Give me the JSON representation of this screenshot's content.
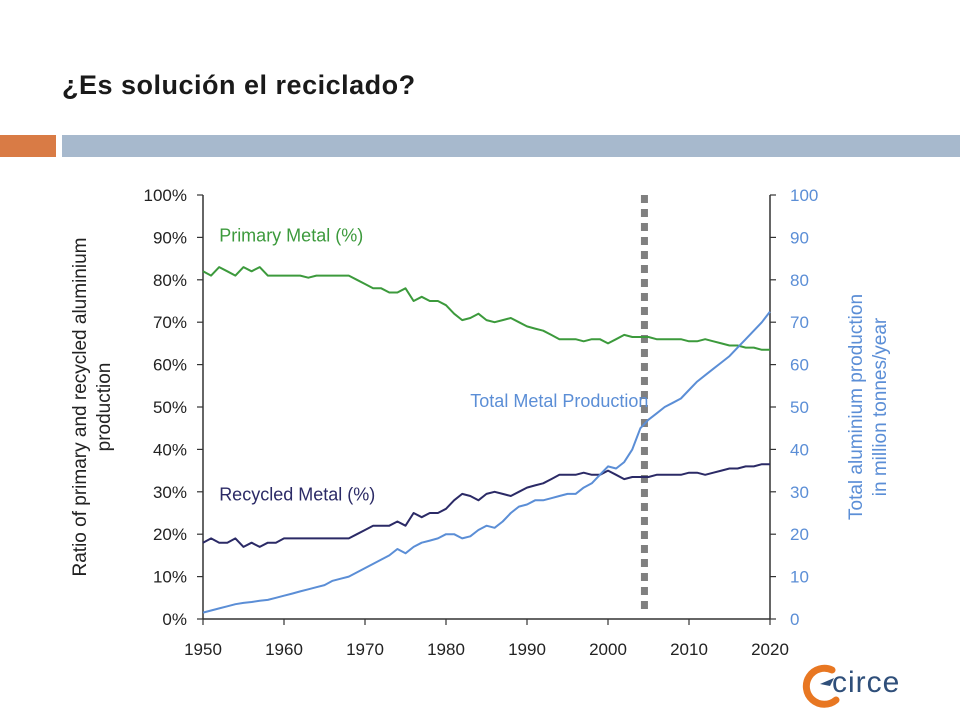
{
  "slide": {
    "title": "¿Es solución el reciclado?"
  },
  "colors": {
    "orange_accent": "#d97b45",
    "blue_bar": "#a7b9cd",
    "primary_series": "#3c9a3c",
    "recycled_series": "#2b2a66",
    "total_series": "#5b8ed6",
    "marker_line": "#808080",
    "logo_orange": "#e87722",
    "logo_blue": "#2f4f7a"
  },
  "logo": {
    "text": "circe"
  },
  "chart_data": {
    "type": "line",
    "x": [
      1950,
      1951,
      1952,
      1953,
      1954,
      1955,
      1956,
      1957,
      1958,
      1959,
      1960,
      1961,
      1962,
      1963,
      1964,
      1965,
      1966,
      1967,
      1968,
      1969,
      1970,
      1971,
      1972,
      1973,
      1974,
      1975,
      1976,
      1977,
      1978,
      1979,
      1980,
      1981,
      1982,
      1983,
      1984,
      1985,
      1986,
      1987,
      1988,
      1989,
      1990,
      1991,
      1992,
      1993,
      1994,
      1995,
      1996,
      1997,
      1998,
      1999,
      2000,
      2001,
      2002,
      2003,
      2004,
      2005,
      2006,
      2007,
      2008,
      2009,
      2010,
      2011,
      2012,
      2013,
      2014,
      2015,
      2016,
      2017,
      2018,
      2019,
      2020
    ],
    "xticks": [
      1950,
      1960,
      1970,
      1980,
      1990,
      2000,
      2010,
      2020
    ],
    "xlim": [
      1950,
      2020
    ],
    "y_left": {
      "label": "Ratio of primary and recycled aluminium production",
      "ticks": [
        "0%",
        "10%",
        "20%",
        "30%",
        "40%",
        "50%",
        "60%",
        "70%",
        "80%",
        "90%",
        "100%"
      ],
      "ylim": [
        0,
        100
      ]
    },
    "y_right": {
      "label": "Total aluminium production in million tonnes/year",
      "ticks": [
        "0",
        "10",
        "20",
        "30",
        "40",
        "50",
        "60",
        "70",
        "80",
        "90",
        "100"
      ],
      "ylim": [
        0,
        100
      ]
    },
    "vertical_marker_x": 2004.5,
    "series": [
      {
        "name": "Primary Metal (%)",
        "axis": "left",
        "label_at": [
          1952,
          89
        ],
        "values": [
          82,
          81,
          83,
          82,
          81,
          83,
          82,
          83,
          81,
          81,
          81,
          81,
          81,
          80.5,
          81,
          81,
          81,
          81,
          81,
          80,
          79,
          78,
          78,
          77,
          77,
          78,
          75,
          76,
          75,
          75,
          74,
          72,
          70.5,
          71,
          72,
          70.5,
          70,
          70.5,
          71,
          70,
          69,
          68.5,
          68,
          67,
          66,
          66,
          66,
          65.5,
          66,
          66,
          65,
          66,
          67,
          66.5,
          66.5,
          66.5,
          66,
          66,
          66,
          66,
          65.5,
          65.5,
          66,
          65.5,
          65,
          64.5,
          64.5,
          64,
          64,
          63.5,
          63.5
        ]
      },
      {
        "name": "Recycled Metal (%)",
        "axis": "left",
        "label_at": [
          1952,
          28
        ],
        "values": [
          18,
          19,
          18,
          18,
          19,
          17,
          18,
          17,
          18,
          18,
          19,
          19,
          19,
          19,
          19,
          19,
          19,
          19,
          19,
          20,
          21,
          22,
          22,
          22,
          23,
          22,
          25,
          24,
          25,
          25,
          26,
          28,
          29.5,
          29,
          28,
          29.5,
          30,
          29.5,
          29,
          30,
          31,
          31.5,
          32,
          33,
          34,
          34,
          34,
          34.5,
          34,
          34,
          35,
          34,
          33,
          33.5,
          33.5,
          33.5,
          34,
          34,
          34,
          34,
          34.5,
          34.5,
          34,
          34.5,
          35,
          35.5,
          35.5,
          36,
          36,
          36.5,
          36.5
        ]
      },
      {
        "name": "Total Metal Production",
        "axis": "right",
        "label_at": [
          1983,
          50
        ],
        "values": [
          1.5,
          2,
          2.5,
          3,
          3.5,
          3.8,
          4,
          4.3,
          4.5,
          5,
          5.5,
          6,
          6.5,
          7,
          7.5,
          8,
          9,
          9.5,
          10,
          11,
          12,
          13,
          14,
          15,
          16.5,
          15.5,
          17,
          18,
          18.5,
          19,
          20,
          20,
          19,
          19.5,
          21,
          22,
          21.5,
          23,
          25,
          26.5,
          27,
          28,
          28,
          28.5,
          29,
          29.5,
          29.5,
          31,
          32,
          34,
          36,
          35.5,
          37,
          40,
          45,
          47,
          48.5,
          50,
          51,
          52,
          54,
          56,
          57.5,
          59,
          60.5,
          62,
          64,
          66,
          68,
          70,
          72.5
        ]
      }
    ]
  }
}
